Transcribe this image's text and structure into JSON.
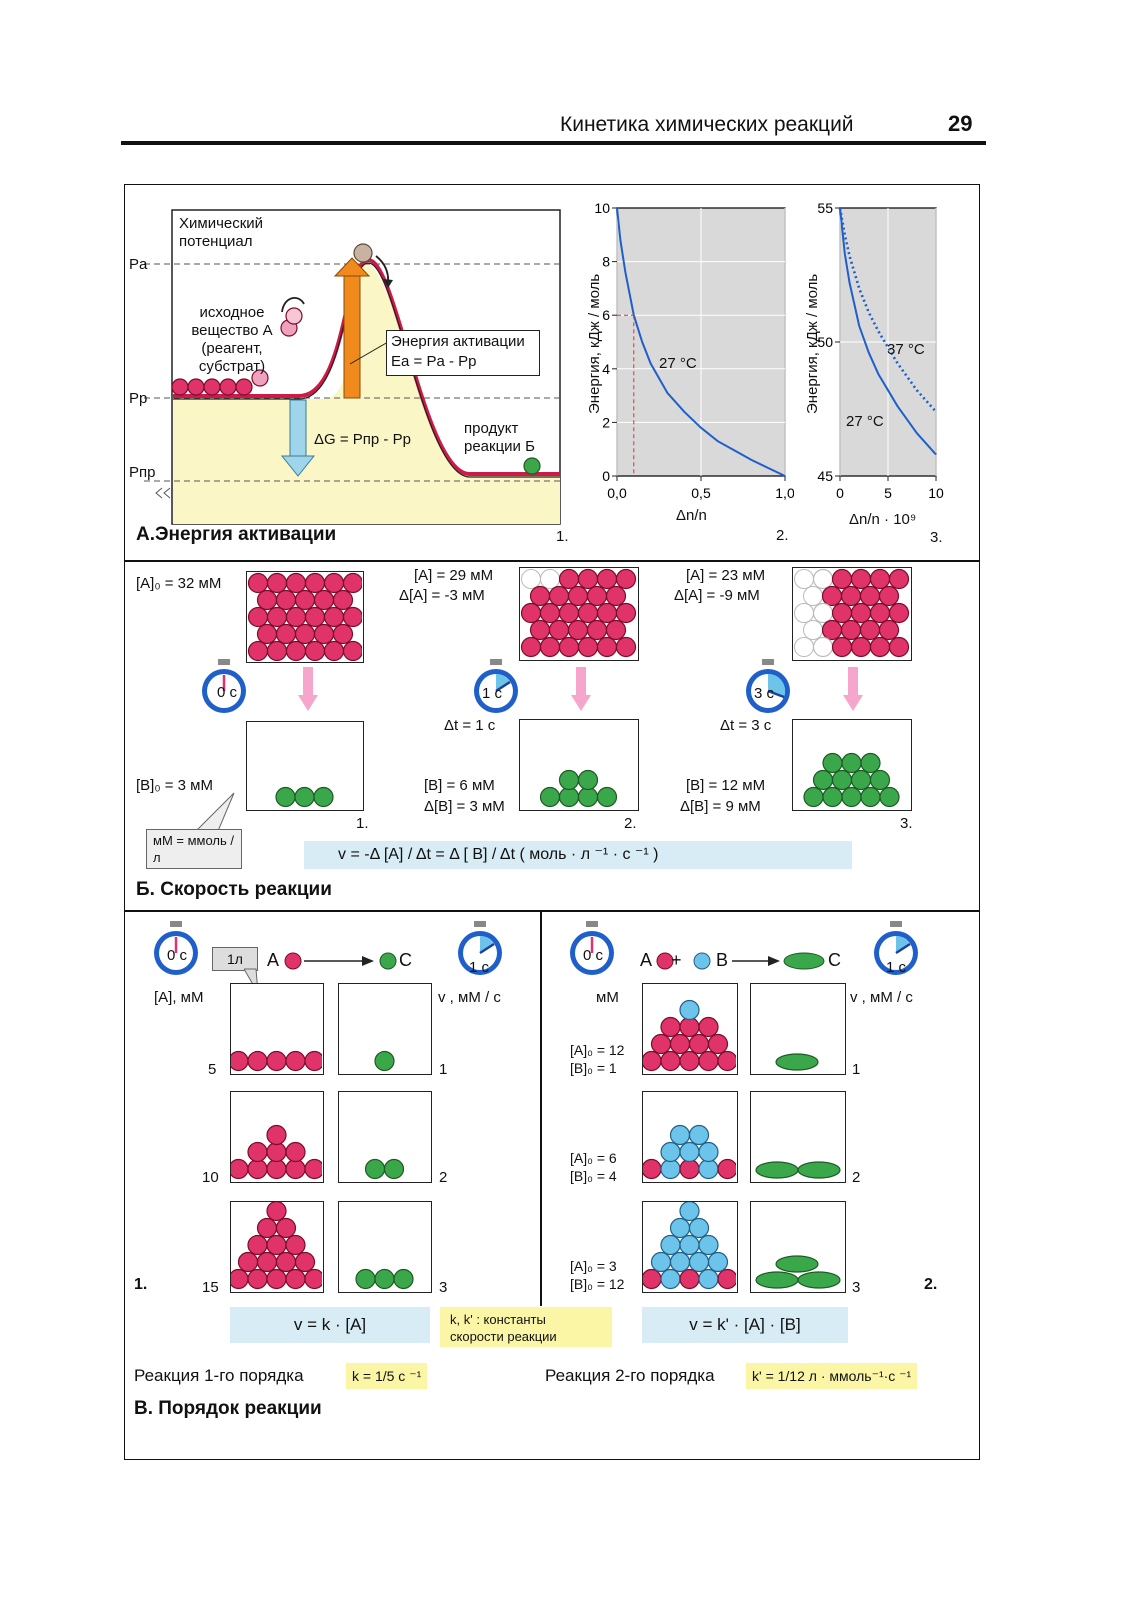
{
  "header": {
    "title": "Кинетика химических реакций",
    "page": "29"
  },
  "sectionA": {
    "title": "А.Энергия активации",
    "diagram": {
      "ylabel": "Химический потенциал",
      "levels": [
        "Pa",
        "Pp",
        "Pпр"
      ],
      "reactant": "исходное вещество А (реагент, субстрат)",
      "activation_l1": "Энергия активации",
      "activation_l2": "Ea = Pa - Pp",
      "dg": "ΔG = Pпр - Pp",
      "product": "продукт реакции Б",
      "num": "1."
    },
    "chart2": {
      "ylabel": "Энергия, кДж / моль",
      "xlabel": "Δn/n",
      "curve_label": "27 °C",
      "num": "2."
    },
    "chart3": {
      "ylabel": "Энергия, кДж / моль",
      "xlabel": "Δn/n · 10⁹",
      "num": "3."
    }
  },
  "chart_data": [
    {
      "type": "line",
      "xlim": [
        0,
        1
      ],
      "ylim": [
        0,
        10
      ],
      "xticks": [
        "0,0",
        "0,5",
        "1,0"
      ],
      "yticks": [
        "0",
        "2",
        "4",
        "6",
        "8",
        "10"
      ],
      "series": [
        {
          "name": "27 °C",
          "x": [
            0.0,
            0.02,
            0.05,
            0.1,
            0.15,
            0.2,
            0.3,
            0.4,
            0.5,
            0.6,
            0.7,
            0.8,
            0.9,
            0.95,
            1.0
          ],
          "y": [
            10,
            8.8,
            7.6,
            6.0,
            5.0,
            4.2,
            3.1,
            2.4,
            1.8,
            1.3,
            0.95,
            0.6,
            0.3,
            0.15,
            0
          ]
        }
      ],
      "annotation": {
        "x": 0.1,
        "y": 6.0
      }
    },
    {
      "type": "line",
      "xlim": [
        0,
        10
      ],
      "ylim": [
        45,
        55
      ],
      "xticks": [
        "0",
        "5",
        "10"
      ],
      "yticks": [
        "45",
        "50",
        "55"
      ],
      "series": [
        {
          "name": "27 °C",
          "style": "solid",
          "x": [
            0,
            0.5,
            1,
            2,
            3,
            4,
            5,
            6,
            7,
            8,
            9,
            10
          ],
          "y": [
            55,
            53.3,
            52.2,
            50.6,
            49.6,
            48.8,
            48.2,
            47.6,
            47.1,
            46.6,
            46.2,
            45.8
          ]
        },
        {
          "name": "37 °C",
          "style": "dotted",
          "x": [
            0,
            0.5,
            1,
            2,
            3,
            4,
            5,
            6,
            7,
            8,
            9,
            10
          ],
          "y": [
            55,
            54.0,
            53.2,
            52.0,
            51.1,
            50.4,
            49.8,
            49.2,
            48.7,
            48.2,
            47.8,
            47.4
          ]
        }
      ]
    }
  ],
  "sectionB": {
    "title": "Б. Скорость реакции",
    "panels": [
      {
        "a_l1": "[A]₀ = 32 мМ",
        "a_l2": "",
        "timer": "0 c",
        "dt": "",
        "b_l1": "[B]₀   = 3 мМ",
        "b_l2": "",
        "num": "1."
      },
      {
        "a_l1": "[A] = 29 мМ",
        "a_l2": "Δ[A] =  -3 мМ",
        "timer": "1 c",
        "dt": "Δt = 1 c",
        "b_l1": "[B] = 6 мМ",
        "b_l2": "Δ[B] = 3 мМ",
        "num": "2."
      },
      {
        "a_l1": "[A] = 23 мМ",
        "a_l2": "Δ[A] =  -9 мМ",
        "timer": "3 c",
        "dt": "Δt = 3 c",
        "b_l1": "[B] = 12 мМ",
        "b_l2": "Δ[B] =  9 мМ",
        "num": "3."
      }
    ],
    "callout": "мМ = ммоль /л",
    "formula": "v   =   -Δ [A] / Δt   =   Δ [ B] / Δt    ( моль · л ⁻¹ · с ⁻¹ )"
  },
  "sectionC": {
    "title": "В. Порядок реакции",
    "left": {
      "timer0": "0 c",
      "timer1": "1 c",
      "tag": "1л",
      "reaction_a": "A",
      "reaction_c": "C",
      "col1": "[A], мМ",
      "col2": "v , мМ / с",
      "rows": [
        {
          "a": "5",
          "v": "1"
        },
        {
          "a": "10",
          "v": "2"
        },
        {
          "a": "15",
          "v": "3"
        }
      ],
      "num": "1.",
      "formula": "v  =  k · [A]",
      "order_label": "Реакция 1-го порядка",
      "k": "k = 1/5 c ⁻¹"
    },
    "right": {
      "timer0": "0 c",
      "timer1": "1 c",
      "reaction_a": "A",
      "reaction_plus": "+",
      "reaction_b": "B",
      "reaction_c": "C",
      "col1": "мМ",
      "col2": "v , мМ / с",
      "rows": [
        {
          "a": "[A]₀ = 12",
          "b": "[B]₀ =  1",
          "v": "1"
        },
        {
          "a": "[A]₀ =  6",
          "b": "[B]₀ =  4",
          "v": "2"
        },
        {
          "a": "[A]₀ =  3",
          "b": "[B]₀ = 12",
          "v": "3"
        }
      ],
      "num": "2.",
      "formula": "v  =  k' · [A] · [B]",
      "order_label": "Реакция  2-го порядка",
      "k": "k' = 1/12 л · ммоль⁻¹·с ⁻¹"
    },
    "note": "k, k' : константы скорости реакции"
  },
  "colors": {
    "red": "#e0336a",
    "green": "#3aa84a",
    "blue": "#6cc4ea",
    "accent_blue": "#1f5fc9",
    "yellow_bg": "#faf3a0",
    "blue_bg": "#d7ecf5"
  }
}
